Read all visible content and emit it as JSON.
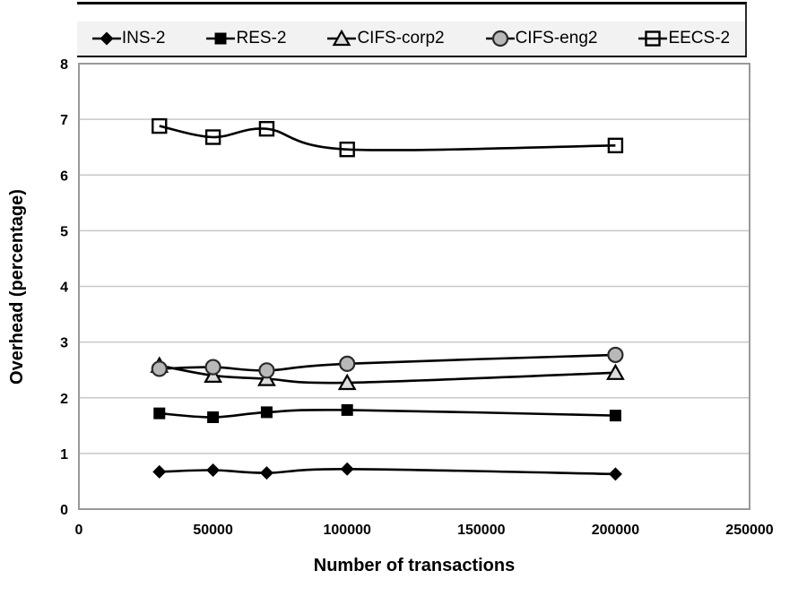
{
  "legend": {
    "items": [
      {
        "label": "INS-2",
        "marker": "diamond"
      },
      {
        "label": "RES-2",
        "marker": "square"
      },
      {
        "label": "CIFS-corp2",
        "marker": "triangle"
      },
      {
        "label": "CIFS-eng2",
        "marker": "circle"
      },
      {
        "label": "EECS-2",
        "marker": "open-square"
      }
    ],
    "position": "top"
  },
  "chart_data": {
    "type": "line",
    "title": "",
    "xlabel": "Number of transactions",
    "ylabel": "Overhead (percentage)",
    "x": [
      30000,
      50000,
      70000,
      100000,
      200000
    ],
    "series": [
      {
        "name": "INS-2",
        "marker": "diamond",
        "values": [
          0.67,
          0.7,
          0.65,
          0.72,
          0.63
        ]
      },
      {
        "name": "RES-2",
        "marker": "square",
        "values": [
          1.72,
          1.65,
          1.74,
          1.78,
          1.68
        ]
      },
      {
        "name": "CIFS-corp2",
        "marker": "triangle",
        "values": [
          2.58,
          2.4,
          2.34,
          2.27,
          2.45
        ]
      },
      {
        "name": "CIFS-eng2",
        "marker": "circle",
        "values": [
          2.52,
          2.55,
          2.49,
          2.61,
          2.77
        ]
      },
      {
        "name": "EECS-2",
        "marker": "open-square",
        "values": [
          6.88,
          6.68,
          6.83,
          6.46,
          6.53
        ]
      }
    ],
    "xlim": [
      0,
      250000
    ],
    "ylim": [
      0,
      8
    ],
    "x_ticks": [
      0,
      50000,
      100000,
      150000,
      200000,
      250000
    ],
    "x_tick_labels": [
      "0",
      "50000",
      "100000",
      "150000",
      "200000",
      "250000"
    ],
    "y_ticks": [
      0,
      1,
      2,
      3,
      4,
      5,
      6,
      7,
      8
    ],
    "y_tick_labels": [
      "0",
      "1",
      "2",
      "3",
      "4",
      "5",
      "6",
      "7",
      "8"
    ],
    "grid": "horizontal",
    "legend_position": "top",
    "smooth_lines": true
  },
  "colors": {
    "series_line": "#000000",
    "gridline": "#c8c8c8",
    "plot_border": "#999999",
    "legend_bg": "#f2f2f2",
    "axis_text": "#000000",
    "diamond_fill": "#000000",
    "square_fill": "#000000",
    "triangle_fill": "#dcdcdc",
    "triangle_stroke": "#000000",
    "circle_fill": "#b8b8b8",
    "circle_stroke": "#2b2b2b",
    "open_square_stroke": "#000000"
  }
}
